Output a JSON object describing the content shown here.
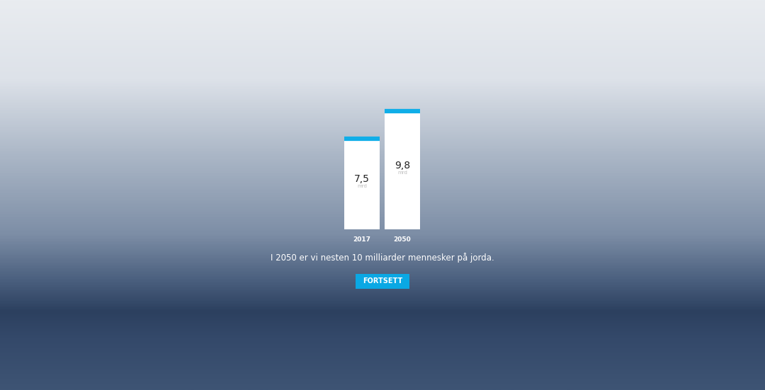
{
  "chart_data": {
    "type": "bar",
    "categories": [
      "2017",
      "2050"
    ],
    "values": [
      7.5,
      9.8
    ],
    "value_labels": [
      "7,5",
      "9,8"
    ],
    "data_labels": true,
    "unit_label": "mrd",
    "color": "#ffffff",
    "ylim": [
      0,
      9.8
    ],
    "tick_labels": "x",
    "grid": false,
    "caption": "I 2050 er vi nesten 10 milliarder mennesker på jorda.",
    "button": "FORTSETT"
  }
}
